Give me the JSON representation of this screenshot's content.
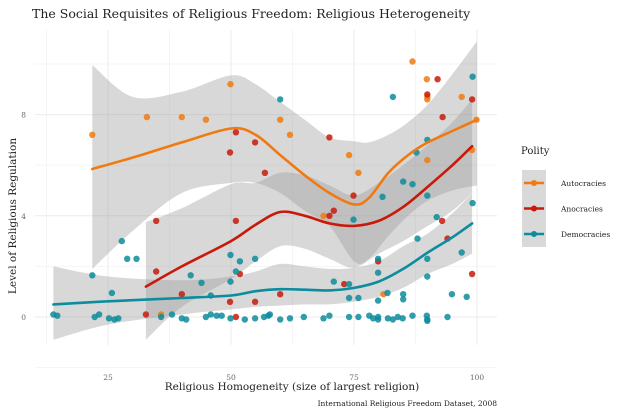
{
  "chart_data": {
    "type": "scatter",
    "title": "The Social Requisites of Religious Freedom: Religious Heterogeneity",
    "xlabel": "Religious Homogeneity (size of largest religion)",
    "ylabel": "Level of Religious Regulation",
    "caption": "International Religious Freedom Dataset, 2008",
    "xlim": [
      12.5,
      103
    ],
    "ylim": [
      -2,
      10.9
    ],
    "x_ticks": [
      25,
      50,
      75,
      100
    ],
    "y_ticks": [
      0,
      4,
      8
    ],
    "x_tick_labels": [
      "25",
      "50",
      "75",
      "100"
    ],
    "y_tick_labels": [
      "0",
      "4",
      "8"
    ],
    "grid": true,
    "legend": {
      "title": "Polity",
      "placement": "right",
      "entries": [
        "Autocracies",
        "Anocracies",
        "Democracies"
      ]
    },
    "series": [
      {
        "name": "Autocracies",
        "color": "#F07A10",
        "points": [
          [
            21.8,
            7.2
          ],
          [
            32.9,
            7.9
          ],
          [
            40.0,
            7.9
          ],
          [
            44.9,
            7.8
          ],
          [
            49.9,
            9.2
          ],
          [
            60.0,
            7.8
          ],
          [
            62.0,
            7.2
          ],
          [
            74.0,
            6.4
          ],
          [
            75.9,
            5.7
          ],
          [
            86.9,
            10.1
          ],
          [
            89.8,
            9.4
          ],
          [
            89.9,
            8.7
          ],
          [
            89.9,
            8.6
          ],
          [
            89.9,
            6.2
          ],
          [
            96.9,
            8.7
          ],
          [
            99.9,
            7.8
          ],
          [
            99.0,
            6.6
          ],
          [
            68.8,
            4.0
          ],
          [
            81.0,
            0.9
          ],
          [
            35.8,
            0.1
          ]
        ],
        "smooth": {
          "x": [
            21.8,
            30,
            40,
            50,
            55,
            60,
            65,
            70,
            75,
            78,
            82,
            86,
            90,
            95,
            100
          ],
          "y": [
            5.85,
            6.3,
            6.9,
            7.45,
            7.2,
            6.4,
            5.6,
            4.9,
            4.45,
            4.7,
            5.7,
            6.4,
            6.9,
            7.35,
            7.8
          ],
          "lower": [
            1.9,
            3.4,
            4.9,
            5.3,
            5.3,
            4.9,
            4.2,
            3.6,
            2.2,
            2.3,
            3.2,
            4.0,
            4.6,
            5.0,
            5.2
          ],
          "upper": [
            9.96,
            8.7,
            8.9,
            9.55,
            9.2,
            8.5,
            7.8,
            7.1,
            6.95,
            6.9,
            7.2,
            7.7,
            8.4,
            9.6,
            10.9
          ]
        }
      },
      {
        "name": "Anocracies",
        "color": "#C81A0A",
        "points": [
          [
            34.8,
            3.8
          ],
          [
            34.8,
            1.8
          ],
          [
            32.7,
            0.1
          ],
          [
            51.0,
            7.3
          ],
          [
            54.9,
            6.9
          ],
          [
            49.8,
            6.5
          ],
          [
            56.9,
            5.7
          ],
          [
            51.0,
            3.8
          ],
          [
            51.8,
            1.7
          ],
          [
            49.8,
            0.6
          ],
          [
            54.9,
            0.6
          ],
          [
            60.0,
            0.9
          ],
          [
            51.0,
            0.0
          ],
          [
            40.0,
            0.9
          ],
          [
            70.0,
            7.1
          ],
          [
            74.9,
            4.8
          ],
          [
            70.9,
            4.2
          ],
          [
            70.0,
            4.0
          ],
          [
            73.0,
            1.3
          ],
          [
            92.0,
            9.4
          ],
          [
            89.9,
            8.8
          ],
          [
            93.0,
            7.9
          ],
          [
            99.0,
            8.6
          ],
          [
            92.9,
            3.8
          ],
          [
            94.0,
            3.1
          ],
          [
            79.9,
            2.2
          ],
          [
            99.0,
            1.7
          ]
        ],
        "smooth": {
          "x": [
            32.7,
            40,
            50,
            55,
            60,
            65,
            70,
            75,
            80,
            85,
            90,
            95,
            99
          ],
          "y": [
            1.2,
            2.0,
            3.0,
            3.65,
            4.15,
            4.0,
            3.7,
            3.6,
            3.8,
            4.35,
            5.15,
            6.0,
            6.75
          ],
          "lower": [
            -0.9,
            0.4,
            1.5,
            2.2,
            2.8,
            2.7,
            2.3,
            1.95,
            2.5,
            3.0,
            3.6,
            4.2,
            4.9
          ],
          "upper": [
            3.75,
            4.3,
            5.25,
            5.3,
            5.7,
            5.6,
            5.2,
            4.8,
            5.3,
            6.0,
            6.8,
            7.7,
            8.6
          ]
        }
      },
      {
        "name": "Democracies",
        "color": "#0C8C9C",
        "points": [
          [
            60.0,
            8.6
          ],
          [
            82.9,
            8.7
          ],
          [
            99.1,
            9.5
          ],
          [
            89.9,
            7.0
          ],
          [
            87.7,
            6.5
          ],
          [
            85.0,
            5.35
          ],
          [
            86.9,
            5.25
          ],
          [
            80.8,
            4.75
          ],
          [
            89.9,
            4.8
          ],
          [
            74.9,
            3.85
          ],
          [
            99.1,
            4.5
          ],
          [
            91.8,
            3.95
          ],
          [
            87.9,
            3.1
          ],
          [
            96.9,
            2.55
          ],
          [
            89.9,
            2.3
          ],
          [
            79.9,
            1.75
          ],
          [
            89.9,
            1.6
          ],
          [
            79.9,
            2.3
          ],
          [
            27.8,
            3.0
          ],
          [
            28.9,
            2.3
          ],
          [
            30.8,
            2.3
          ],
          [
            21.8,
            1.65
          ],
          [
            25.8,
            0.95
          ],
          [
            41.8,
            1.65
          ],
          [
            44.0,
            1.35
          ],
          [
            49.9,
            2.45
          ],
          [
            51.8,
            2.2
          ],
          [
            54.9,
            2.3
          ],
          [
            51.0,
            1.8
          ],
          [
            49.9,
            1.4
          ],
          [
            45.9,
            0.85
          ],
          [
            70.9,
            1.4
          ],
          [
            74.0,
            1.3
          ],
          [
            74.0,
            0.75
          ],
          [
            75.9,
            0.75
          ],
          [
            81.8,
            0.95
          ],
          [
            85.0,
            0.9
          ],
          [
            85.0,
            0.7
          ],
          [
            79.9,
            0.65
          ],
          [
            94.9,
            0.9
          ],
          [
            97.9,
            0.8
          ],
          [
            13.9,
            0.1
          ],
          [
            14.7,
            0.05
          ],
          [
            22.3,
            0.0
          ],
          [
            23.2,
            0.1
          ],
          [
            25.2,
            -0.05
          ],
          [
            26.3,
            -0.1
          ],
          [
            27.1,
            -0.05
          ],
          [
            35.8,
            0.0
          ],
          [
            38.0,
            0.1
          ],
          [
            40.0,
            -0.05
          ],
          [
            40.9,
            -0.1
          ],
          [
            44.9,
            0.0
          ],
          [
            45.9,
            0.1
          ],
          [
            47.1,
            0.05
          ],
          [
            48.1,
            0.05
          ],
          [
            49.9,
            -0.05
          ],
          [
            52.8,
            -0.1
          ],
          [
            54.9,
            -0.05
          ],
          [
            56.7,
            0.0
          ],
          [
            57.6,
            0.05
          ],
          [
            57.9,
            0.1
          ],
          [
            60.0,
            -0.1
          ],
          [
            62.0,
            -0.05
          ],
          [
            64.8,
            0.0
          ],
          [
            68.8,
            -0.05
          ],
          [
            70.0,
            0.05
          ],
          [
            74.0,
            0.0
          ],
          [
            75.9,
            0.0
          ],
          [
            78.1,
            0.05
          ],
          [
            78.9,
            -0.05
          ],
          [
            79.9,
            0.0
          ],
          [
            79.9,
            -0.1
          ],
          [
            81.9,
            -0.05
          ],
          [
            82.9,
            -0.1
          ],
          [
            83.9,
            0.0
          ],
          [
            84.9,
            -0.05
          ],
          [
            86.9,
            0.05
          ],
          [
            89.8,
            0.05
          ],
          [
            89.9,
            -0.1
          ],
          [
            89.9,
            -0.15
          ],
          [
            94.0,
            0.0
          ]
        ],
        "smooth": {
          "x": [
            13.9,
            25,
            40,
            50,
            55,
            60,
            65,
            70,
            75,
            80,
            85,
            90,
            95,
            99
          ],
          "y": [
            0.5,
            0.62,
            0.75,
            0.85,
            1.02,
            1.1,
            1.08,
            1.05,
            1.15,
            1.4,
            1.9,
            2.55,
            3.15,
            3.7
          ],
          "lower": [
            -0.9,
            -0.3,
            0.1,
            0.3,
            0.4,
            0.45,
            0.5,
            0.5,
            0.6,
            0.8,
            1.15,
            1.7,
            2.1,
            2.5
          ],
          "upper": [
            2.0,
            1.6,
            1.45,
            1.6,
            1.8,
            2.1,
            2.0,
            1.9,
            1.95,
            2.2,
            2.8,
            3.3,
            4.1,
            4.9
          ]
        }
      }
    ]
  }
}
